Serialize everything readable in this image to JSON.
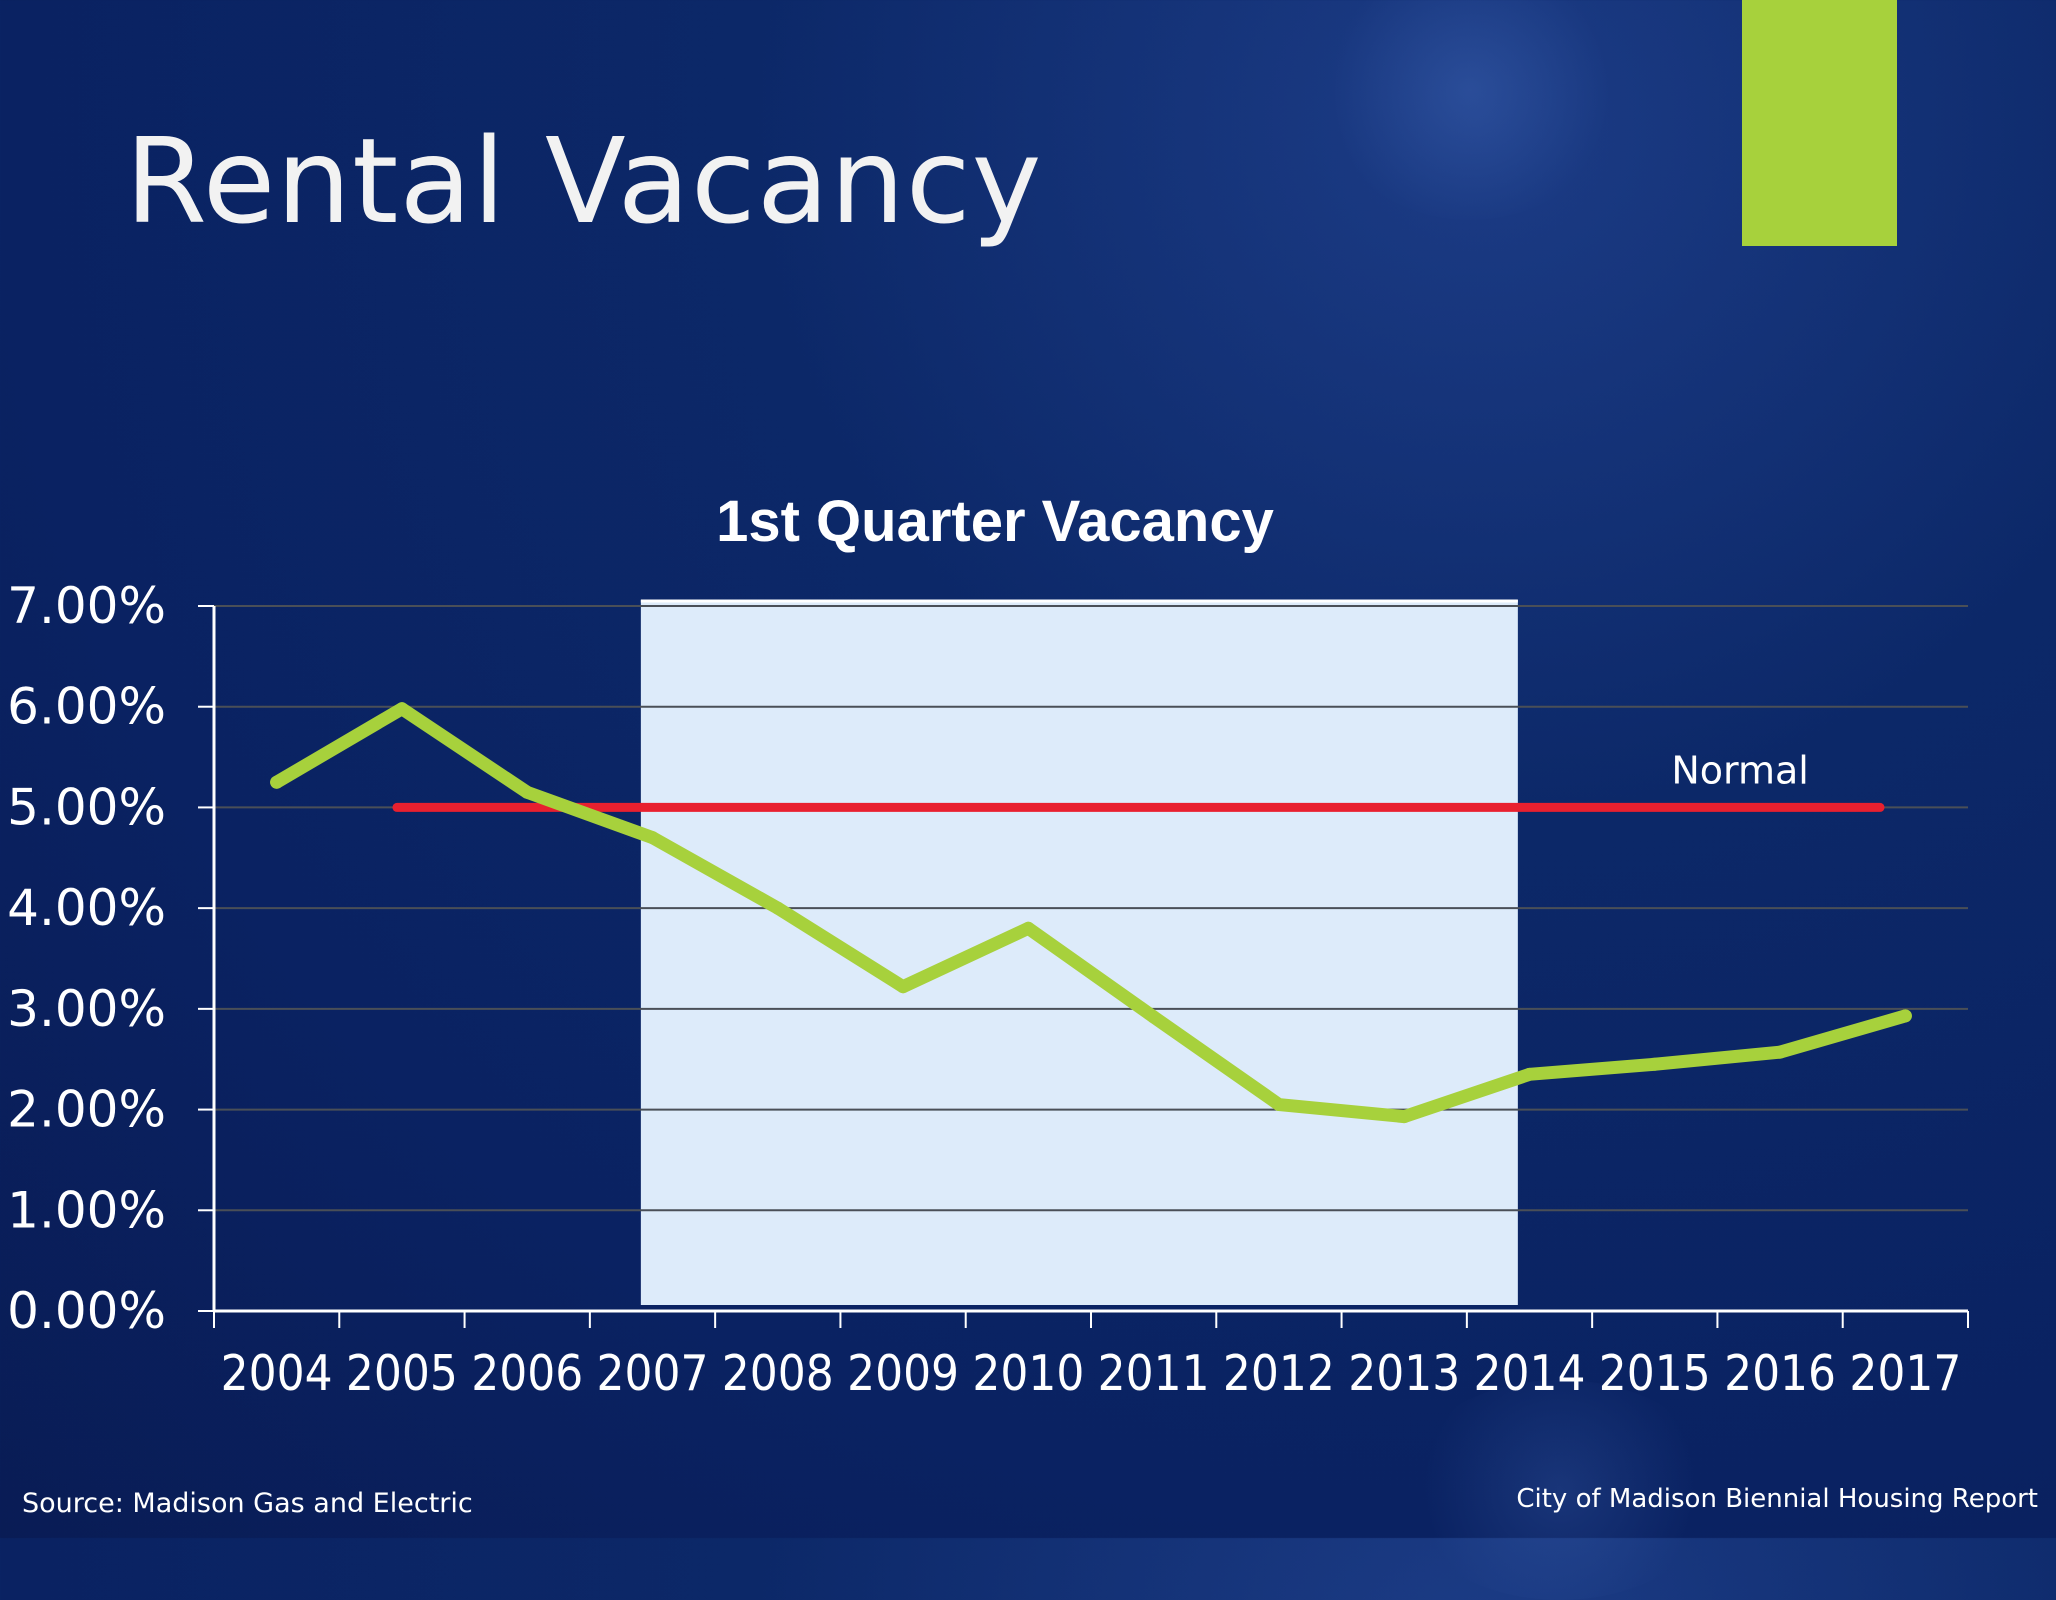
{
  "slide": {
    "title": "Rental Vacancy",
    "source": "Source: Madison Gas and Electric",
    "report": "City of Madison Biennial Housing Report",
    "accent_color": "#a7d13c"
  },
  "chart_data": {
    "type": "line",
    "title": "1st Quarter Vacancy",
    "categories": [
      "2004",
      "2005",
      "2006",
      "2007",
      "2008",
      "2009",
      "2010",
      "2011",
      "2012",
      "2013",
      "2014",
      "2015",
      "2016",
      "2017"
    ],
    "series": [
      {
        "values": [
          5.25,
          5.98,
          5.15,
          4.7,
          4.0,
          3.22,
          3.8,
          2.92,
          2.05,
          1.93,
          2.35,
          2.45,
          2.57,
          2.93
        ],
        "color": "#a7d13c"
      }
    ],
    "reference_line": {
      "label": "Normal",
      "value": 5.0,
      "from": "2005",
      "to": "2016",
      "color": "#e8202f"
    },
    "shaded_region": {
      "from": "2007",
      "to": "2014",
      "color": "#ddebfa"
    },
    "ylim": [
      0,
      7
    ],
    "yticks": [
      "0.00%",
      "1.00%",
      "2.00%",
      "3.00%",
      "4.00%",
      "5.00%",
      "6.00%",
      "7.00%"
    ],
    "xlabel": "",
    "ylabel": "",
    "grid": true,
    "legend": "none"
  }
}
